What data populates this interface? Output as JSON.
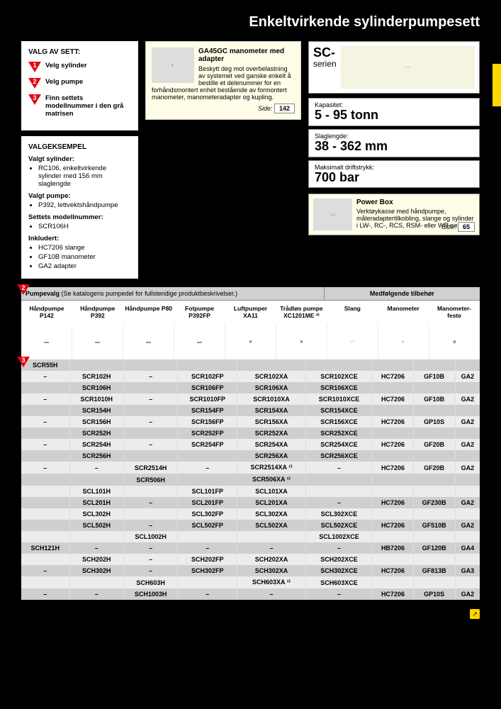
{
  "page_title": "Enkeltvirkende sylinderpumpesett",
  "valg_sett": {
    "heading": "VALG AV SETT:",
    "steps": [
      {
        "num": "1",
        "text": "Velg sylinder"
      },
      {
        "num": "2",
        "text": "Velg pumpe"
      },
      {
        "num": "3",
        "text": "Finn settets modellnummer i den grå matrisen"
      }
    ]
  },
  "eksempel": {
    "heading": "VALGEKSEMPEL",
    "sections": [
      {
        "title": "Valgt sylinder:",
        "items": [
          "RC106, enkeltvirkende sylinder med 156 mm slaglengde"
        ]
      },
      {
        "title": "Valgt pumpe:",
        "items": [
          "P392, lettvektshåndpumpe"
        ]
      },
      {
        "title": "Settets modellnummer:",
        "items": [
          "SCR106H"
        ]
      },
      {
        "title": "Inkludert:",
        "items": [
          "HC7206 slange",
          "GF10B manometer",
          "GA2 adapter"
        ]
      }
    ]
  },
  "callout": {
    "title": "GA45GC manometer med adapter",
    "body": "Beskytt deg mot overbelastning av systemet ved ganske enkelt å bestille et delenummer for en forhåndsmontert enhet bestående av formontert manometer, manometeradapter og kupling.",
    "side_label": "Side:",
    "page": "142"
  },
  "sc": {
    "title": "SC-",
    "subtitle": "serien"
  },
  "specs": [
    {
      "label": "Kapasitet:",
      "value": "5 - 95 tonn"
    },
    {
      "label": "Slaglengde:",
      "value": "38 - 362 mm"
    },
    {
      "label": "Maksimalt driftstrykk:",
      "value": "700 bar"
    }
  ],
  "powerbox": {
    "title": "Power Box",
    "body": "Verktøykasse med håndpumpe, måleradaptertilkobling, slange og sylinder i LW-, RC-, RCS, RSM- eller WR-serien.",
    "side_label": "Side:",
    "page": "65"
  },
  "table": {
    "pumpevalg_label": "Pumpevalg",
    "pumpevalg_note": "(Se katalogens pumpedel for fullstendige produktbeskrivelser.)",
    "accessories_label": "Medfølgende tilbehør",
    "columns": [
      "Håndpumpe P142",
      "Håndpumpe P392",
      "Håndpumpe P80",
      "Fotpumpe P392FP",
      "Luftpumper XA11",
      "Trådløs pumpe XC1201ME ²⁾",
      "Slang",
      "Manometer",
      "Manometer-feste"
    ],
    "badge2": "2",
    "badge3": "3",
    "rows": [
      {
        "stripe": "a",
        "cells": [
          "SCR55H",
          "",
          "",
          "",
          "",
          "",
          "",
          "",
          ""
        ]
      },
      {
        "stripe": "b",
        "cells": [
          "–",
          "SCR102H",
          "–",
          "SCR102FP",
          "SCR102XA",
          "SCR102XCE",
          "HC7206",
          "GF10B",
          "GA2"
        ]
      },
      {
        "stripe": "a",
        "cells": [
          "",
          "SCR106H",
          "",
          "SCR106FP",
          "SCR106XA",
          "SCR106XCE",
          "",
          "",
          ""
        ]
      },
      {
        "stripe": "b",
        "cells": [
          "–",
          "SCR1010H",
          "–",
          "SCR1010FP",
          "SCR1010XA",
          "SCR1010XCE",
          "HC7206",
          "GF10B",
          "GA2"
        ]
      },
      {
        "stripe": "a",
        "cells": [
          "",
          "SCR154H",
          "",
          "SCR154FP",
          "SCR154XA",
          "SCR154XCE",
          "",
          "",
          ""
        ]
      },
      {
        "stripe": "b",
        "cells": [
          "–",
          "SCR156H",
          "–",
          "SCR156FP",
          "SCR156XA",
          "SCR156XCE",
          "HC7206",
          "GP10S",
          "GA2"
        ]
      },
      {
        "stripe": "a",
        "cells": [
          "",
          "SCR252H",
          "",
          "SCR252FP",
          "SCR252XA",
          "SCR252XCE",
          "",
          "",
          ""
        ]
      },
      {
        "stripe": "b",
        "cells": [
          "–",
          "SCR254H",
          "–",
          "SCR254FP",
          "SCR254XA",
          "SCR254XCE",
          "HC7206",
          "GF20B",
          "GA2"
        ]
      },
      {
        "stripe": "a",
        "cells": [
          "",
          "SCR256H",
          "",
          "",
          "SCR256XA",
          "SCR256XCE",
          "",
          "",
          ""
        ]
      },
      {
        "stripe": "b",
        "cells": [
          "–",
          "–",
          "SCR2514H",
          "–",
          "SCR2514XA ¹⁾",
          "–",
          "HC7206",
          "GF20B",
          "GA2"
        ]
      },
      {
        "stripe": "a",
        "cells": [
          "",
          "",
          "SCR506H",
          "",
          "SCR506XA ¹⁾",
          "",
          "",
          "",
          ""
        ]
      },
      {
        "stripe": "b",
        "cells": [
          "",
          "SCL101H",
          "",
          "SCL101FP",
          "SCL101XA",
          "",
          "",
          "",
          ""
        ]
      },
      {
        "stripe": "a",
        "cells": [
          "",
          "SCL201H",
          "–",
          "SCL201FP",
          "SCL201XA",
          "–",
          "HC7206",
          "GF230B",
          "GA2"
        ]
      },
      {
        "stripe": "b",
        "cells": [
          "",
          "SCL302H",
          "",
          "SCL302FP",
          "SCL302XA",
          "SCL302XCE",
          "",
          "",
          ""
        ]
      },
      {
        "stripe": "a",
        "cells": [
          "",
          "SCL502H",
          "–",
          "SCL502FP",
          "SCL502XA",
          "SCL502XCE",
          "HC7206",
          "GF510B",
          "GA2"
        ]
      },
      {
        "stripe": "b",
        "cells": [
          "",
          "",
          "SCL1002H",
          "",
          "",
          "SCL1002XCE",
          "",
          "",
          ""
        ]
      },
      {
        "stripe": "a",
        "cells": [
          "SCH121H",
          "–",
          "–",
          "–",
          "–",
          "–",
          "HB7206",
          "GF120B",
          "GA4"
        ]
      },
      {
        "stripe": "b",
        "cells": [
          "",
          "SCH202H",
          "–",
          "SCH202FP",
          "SCH202XA",
          "SCH202XCE",
          "",
          "",
          ""
        ]
      },
      {
        "stripe": "a",
        "cells": [
          "–",
          "SCH302H",
          "–",
          "SCH302FP",
          "SCH302XA",
          "SCH302XCE",
          "HC7206",
          "GF813B",
          "GA3"
        ]
      },
      {
        "stripe": "b",
        "cells": [
          "",
          "",
          "SCH603H",
          "",
          "SCH603XA ¹⁾",
          "SCH603XCE",
          "",
          "",
          ""
        ]
      },
      {
        "stripe": "a",
        "cells": [
          "–",
          "–",
          "SCH1003H",
          "–",
          "–",
          "–",
          "HC7206",
          "GP10S",
          "GA2"
        ]
      }
    ]
  },
  "colors": {
    "brand_yellow": "#ffd500",
    "brand_red": "#e30613",
    "callout_bg": "#fffde7",
    "stripe_a": "#cfcfcf",
    "stripe_b": "#ececec"
  }
}
